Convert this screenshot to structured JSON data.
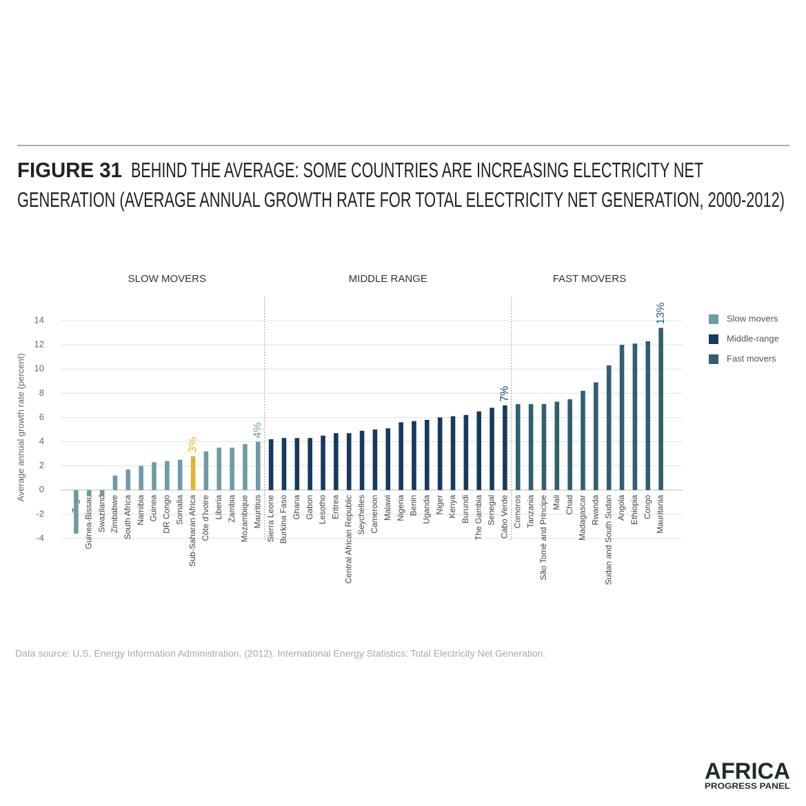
{
  "title_label": "FIGURE 31",
  "title_lines": [
    "BEHIND THE AVERAGE: SOME COUNTRIES ARE INCREASING ELECTRICITY NET",
    "GENERATION (AVERAGE ANNUAL GROWTH RATE FOR TOTAL ELECTRICITY NET GENERATION, 2000-2012)"
  ],
  "source": "Data source: U.S. Energy Information Administration. (2012). International Energy Statistics: Total Electricity Net Generation.",
  "logo": {
    "line1": "AFRICA",
    "line2": "PROGRESS PANEL"
  },
  "chart_data": {
    "type": "bar",
    "y_label": "Average annual growth rate (percent)",
    "categories": [
      "Togo",
      "Guinea-Bissau",
      "Swaziland",
      "Zimbabwe",
      "South Africa",
      "Namibia",
      "Guinea",
      "DR Congo",
      "Somalia",
      "Sub-Saharan Africa",
      "Côte d'Ivoire",
      "Liberia",
      "Zambia",
      "Mozambique",
      "Mauritius",
      "Sierra Leone",
      "Burkina Faso",
      "Ghana",
      "Gabon",
      "Lesotho",
      "Eritrea",
      "Central African Republic",
      "Seychelles",
      "Cameroon",
      "Malawi",
      "Nigeria",
      "Benin",
      "Uganda",
      "Niger",
      "Kenya",
      "Burundi",
      "The Gambia",
      "Senegal",
      "Cabo Verde",
      "Comoros",
      "Tanzania",
      "São Tomé and Principe",
      "Mali",
      "Chad",
      "Madagascar",
      "Rwanda",
      "Sudan and South Sudan",
      "Angola",
      "Ethiopia",
      "Congo",
      "Mauritania"
    ],
    "series": [
      {
        "name": "Slow movers",
        "section": "SLOW MOVERS",
        "color": "#6f9aa6",
        "highlight_index": 9,
        "highlight_color": "#e2b230",
        "values": [
          -3.6,
          -0.5,
          -0.5,
          1.2,
          1.7,
          2.0,
          2.3,
          2.4,
          2.5,
          2.8,
          3.2,
          3.5,
          3.5,
          3.8,
          4.0,
          null,
          null,
          null,
          null,
          null,
          null,
          null,
          null,
          null,
          null,
          null,
          null,
          null,
          null,
          null,
          null,
          null,
          null,
          null,
          null,
          null,
          null,
          null,
          null,
          null,
          null,
          null,
          null,
          null,
          null,
          null
        ],
        "value_labels": [
          null,
          null,
          null,
          null,
          null,
          null,
          null,
          null,
          null,
          "3%",
          null,
          null,
          null,
          null,
          "4%",
          null,
          null,
          null,
          null,
          null,
          null,
          null,
          null,
          null,
          null,
          null,
          null,
          null,
          null,
          null,
          null,
          null,
          null,
          null,
          null,
          null,
          null,
          null,
          null,
          null,
          null,
          null,
          null,
          null,
          null,
          null
        ]
      },
      {
        "name": "Middle-range",
        "section": "MIDDLE RANGE",
        "color": "#163a5e",
        "values": [
          null,
          null,
          null,
          null,
          null,
          null,
          null,
          null,
          null,
          null,
          null,
          null,
          null,
          null,
          null,
          4.2,
          4.3,
          4.3,
          4.3,
          4.5,
          4.7,
          4.7,
          4.9,
          5.0,
          5.1,
          5.6,
          5.7,
          5.8,
          6.0,
          6.1,
          6.2,
          6.5,
          6.8,
          7.0,
          null,
          null,
          null,
          null,
          null,
          null,
          null,
          null,
          null,
          null,
          null,
          null
        ],
        "value_labels": [
          null,
          null,
          null,
          null,
          null,
          null,
          null,
          null,
          null,
          null,
          null,
          null,
          null,
          null,
          null,
          null,
          null,
          null,
          null,
          null,
          null,
          null,
          null,
          null,
          null,
          null,
          null,
          null,
          null,
          null,
          null,
          null,
          null,
          "7%",
          null,
          null,
          null,
          null,
          null,
          null,
          null,
          null,
          null,
          null,
          null,
          null
        ]
      },
      {
        "name": "Fast movers",
        "section": "FAST MOVERS",
        "color": "#2f5f70",
        "values": [
          null,
          null,
          null,
          null,
          null,
          null,
          null,
          null,
          null,
          null,
          null,
          null,
          null,
          null,
          null,
          null,
          null,
          null,
          null,
          null,
          null,
          null,
          null,
          null,
          null,
          null,
          null,
          null,
          null,
          null,
          null,
          null,
          null,
          null,
          7.1,
          7.1,
          7.1,
          7.3,
          7.5,
          8.2,
          8.9,
          10.3,
          12.0,
          12.1,
          12.3,
          13.4
        ],
        "value_labels": [
          null,
          null,
          null,
          null,
          null,
          null,
          null,
          null,
          null,
          null,
          null,
          null,
          null,
          null,
          null,
          null,
          null,
          null,
          null,
          null,
          null,
          null,
          null,
          null,
          null,
          null,
          null,
          null,
          null,
          null,
          null,
          null,
          null,
          null,
          null,
          null,
          null,
          null,
          null,
          null,
          null,
          null,
          null,
          null,
          null,
          "13%"
        ]
      }
    ],
    "ylim": [
      -4,
      14
    ],
    "yticks": [
      -4,
      -2,
      0,
      2,
      4,
      6,
      8,
      10,
      12,
      14
    ],
    "grid": true,
    "legend": "right"
  }
}
